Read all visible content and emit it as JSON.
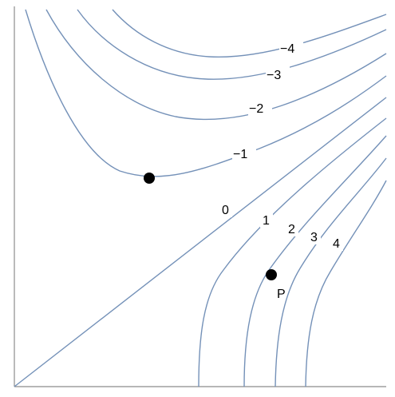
{
  "diagram": {
    "colors": {
      "contour": "#7491b8",
      "axis": "#8c8c8c",
      "point": "#000000"
    },
    "contour_levels": [
      {
        "label": "−4"
      },
      {
        "label": "−3"
      },
      {
        "label": "−2"
      },
      {
        "label": "−1"
      },
      {
        "label": "0"
      },
      {
        "label": "1"
      },
      {
        "label": "2"
      },
      {
        "label": "3"
      },
      {
        "label": "4"
      }
    ],
    "points": [
      {
        "label": ""
      },
      {
        "label": "P"
      }
    ]
  }
}
